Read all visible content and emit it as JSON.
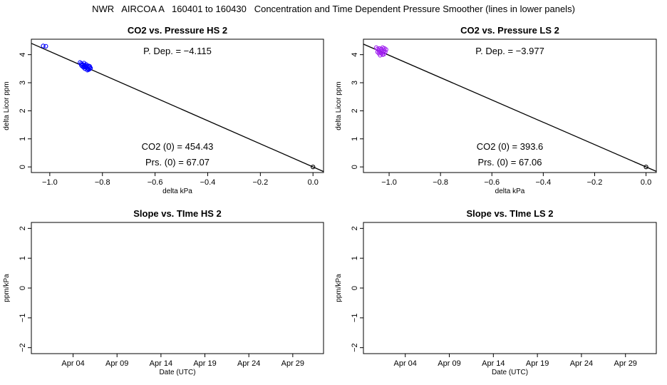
{
  "main_title": "NWR   AIRCOA A   160401 to 160430   Concentration and Time Dependent Pressure Smoother (lines in lower panels)",
  "colors": {
    "hs_points": "#0000ff",
    "ls_points": "#a020f0",
    "line": "#000000",
    "axis": "#000000"
  },
  "chart_data": [
    {
      "type": "scatter",
      "title": "CO2 vs. Pressure HS 2",
      "xlabel": "delta kPa",
      "ylabel": "delta Licor ppm",
      "xlim": [
        -1.07,
        0.04
      ],
      "ylim": [
        -0.2,
        4.55
      ],
      "xticks": [
        -1.0,
        -0.8,
        -0.6,
        -0.4,
        -0.2,
        0.0
      ],
      "xtick_labels": [
        "−1.0",
        "−0.8",
        "−0.6",
        "−0.4",
        "−0.2",
        "0.0"
      ],
      "yticks": [
        0,
        1,
        2,
        3,
        4
      ],
      "ytick_labels": [
        "0",
        "1",
        "2",
        "3",
        "4"
      ],
      "fit_line": {
        "slope": -4.115,
        "intercept": 0
      },
      "annotations": {
        "p_dep": "P. Dep. =  −4.115",
        "co2_0": "CO2 (0) =  454.43",
        "prs_0": "Prs. (0) =  67.07"
      },
      "point_color": "#0000ff",
      "points": [
        [
          -1.025,
          4.31
        ],
        [
          -1.015,
          4.3
        ],
        [
          -0.885,
          3.72
        ],
        [
          -0.88,
          3.68
        ],
        [
          -0.875,
          3.65
        ],
        [
          -0.87,
          3.7
        ],
        [
          -0.868,
          3.62
        ],
        [
          -0.865,
          3.58
        ],
        [
          -0.862,
          3.55
        ],
        [
          -0.86,
          3.6
        ],
        [
          -0.858,
          3.52
        ],
        [
          -0.855,
          3.5
        ],
        [
          -0.852,
          3.47
        ],
        [
          -0.85,
          3.55
        ],
        [
          -0.848,
          3.58
        ],
        [
          -0.845,
          3.52
        ],
        [
          -0.878,
          3.6
        ],
        [
          -0.872,
          3.55
        ],
        [
          -0.866,
          3.5
        ],
        [
          -0.862,
          3.65
        ],
        [
          -0.857,
          3.45
        ],
        [
          -0.853,
          3.6
        ],
        [
          -0.847,
          3.5
        ],
        [
          -0.88,
          3.63
        ],
        [
          -0.87,
          3.58
        ],
        [
          0.0,
          0.0
        ]
      ]
    },
    {
      "type": "scatter",
      "title": "CO2 vs. Pressure LS 2",
      "xlabel": "delta kPa",
      "ylabel": "delta Licor ppm",
      "xlim": [
        -1.1,
        0.04
      ],
      "ylim": [
        -0.2,
        4.55
      ],
      "xticks": [
        -1.0,
        -0.8,
        -0.6,
        -0.4,
        -0.2,
        0.0
      ],
      "xtick_labels": [
        "−1.0",
        "−0.8",
        "−0.6",
        "−0.4",
        "−0.2",
        "0.0"
      ],
      "yticks": [
        0,
        1,
        2,
        3,
        4
      ],
      "ytick_labels": [
        "0",
        "1",
        "2",
        "3",
        "4"
      ],
      "fit_line": {
        "slope": -3.977,
        "intercept": 0
      },
      "annotations": {
        "p_dep": "P. Dep. =  −3.977",
        "co2_0": "CO2 (0) =  393.6",
        "prs_0": "Prs. (0) =  67.06"
      },
      "point_color": "#a020f0",
      "points": [
        [
          -1.05,
          4.25
        ],
        [
          -1.045,
          4.2
        ],
        [
          -1.04,
          4.15
        ],
        [
          -1.038,
          4.22
        ],
        [
          -1.035,
          4.1
        ],
        [
          -1.032,
          4.18
        ],
        [
          -1.03,
          4.05
        ],
        [
          -1.028,
          4.12
        ],
        [
          -1.025,
          4.0
        ],
        [
          -1.022,
          4.08
        ],
        [
          -1.02,
          4.15
        ],
        [
          -1.018,
          4.22
        ],
        [
          -1.015,
          4.1
        ],
        [
          -1.012,
          4.18
        ],
        [
          -1.04,
          4.05
        ],
        [
          -1.035,
          3.98
        ],
        [
          -1.03,
          4.2
        ],
        [
          -1.025,
          4.25
        ],
        [
          -1.02,
          4.02
        ],
        [
          -1.045,
          4.1
        ],
        [
          0.0,
          0.0
        ]
      ]
    },
    {
      "type": "line",
      "title": "Slope vs. TIme HS 2",
      "xlabel": "Date (UTC)",
      "ylabel": "ppm/kPa",
      "xlim": [
        -1.75,
        31.5
      ],
      "ylim": [
        -2.2,
        2.2
      ],
      "xticks": [
        3,
        8,
        13,
        18,
        23,
        28
      ],
      "xtick_labels": [
        "Apr 04",
        "Apr 09",
        "Apr 14",
        "Apr 19",
        "Apr 24",
        "Apr 29"
      ],
      "yticks": [
        -2,
        -1,
        0,
        1,
        2
      ],
      "ytick_labels": [
        "−2",
        "−1",
        "0",
        "1",
        "2"
      ],
      "series": []
    },
    {
      "type": "line",
      "title": "Slope vs. TIme LS 2",
      "xlabel": "Date (UTC)",
      "ylabel": "ppm/kPa",
      "xlim": [
        -1.75,
        31.5
      ],
      "ylim": [
        -2.2,
        2.2
      ],
      "xticks": [
        3,
        8,
        13,
        18,
        23,
        28
      ],
      "xtick_labels": [
        "Apr 04",
        "Apr 09",
        "Apr 14",
        "Apr 19",
        "Apr 24",
        "Apr 29"
      ],
      "yticks": [
        -2,
        -1,
        0,
        1,
        2
      ],
      "ytick_labels": [
        "−2",
        "−1",
        "0",
        "1",
        "2"
      ],
      "series": []
    }
  ]
}
